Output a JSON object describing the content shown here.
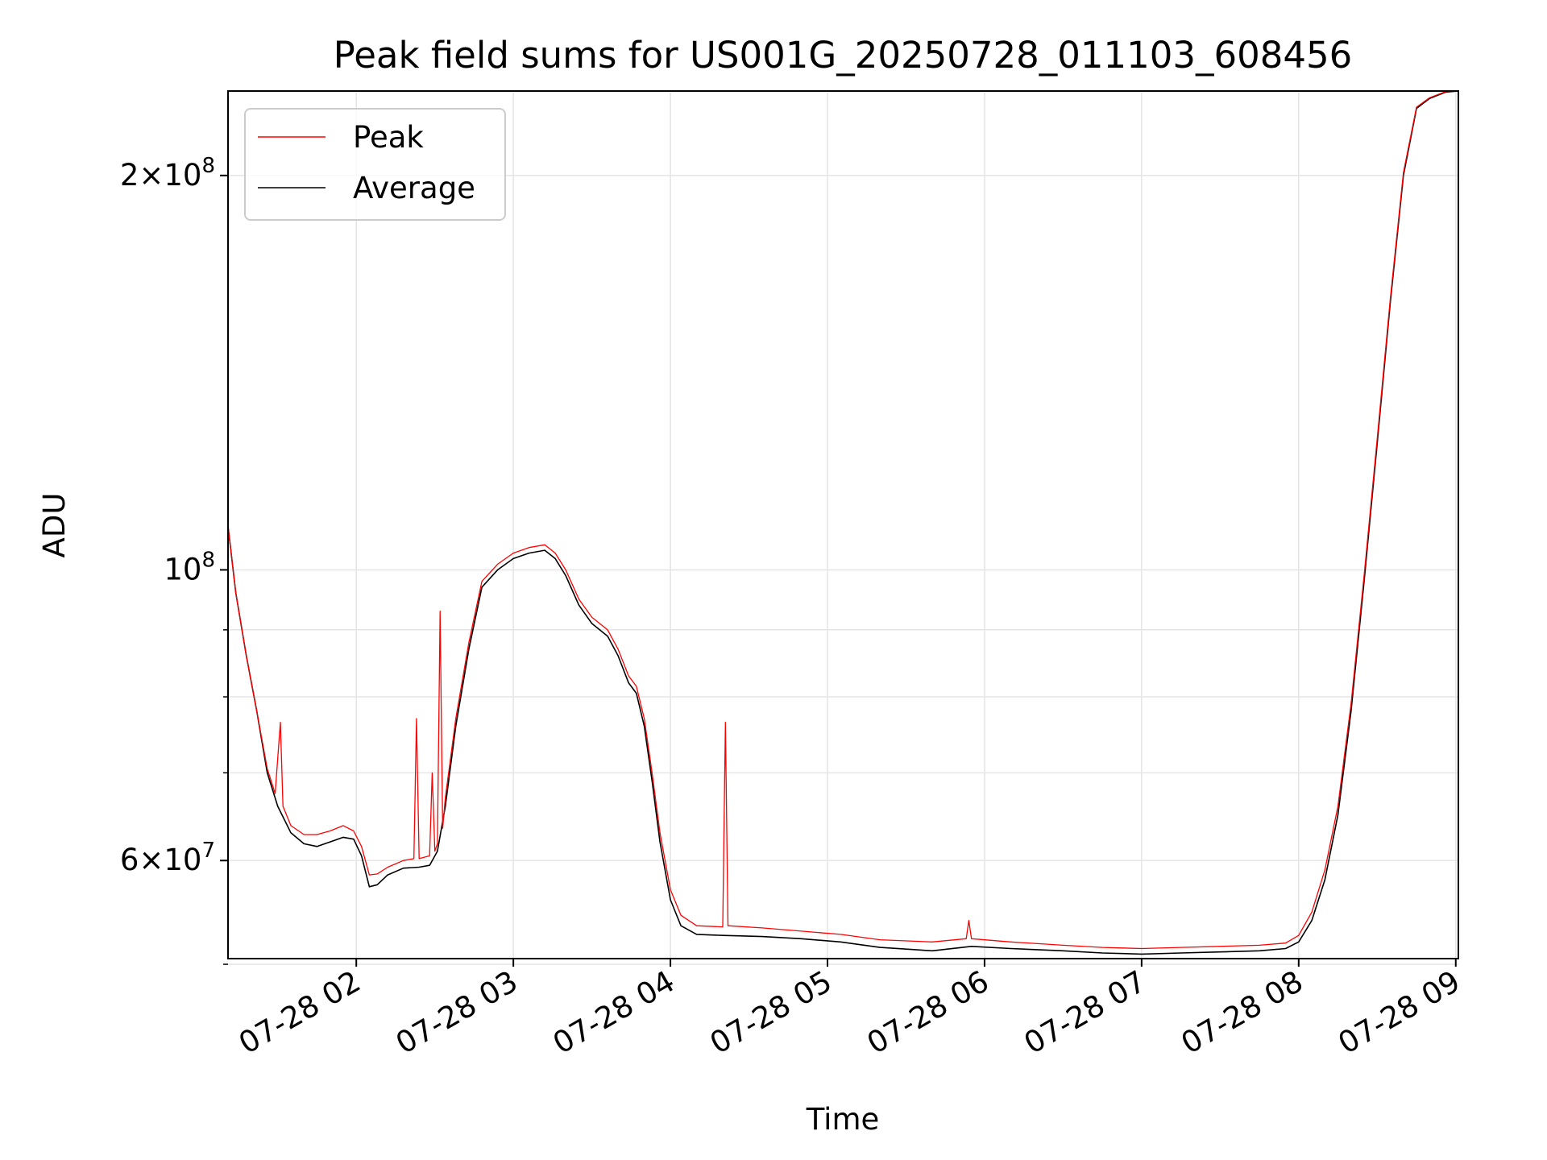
{
  "chart_data": {
    "type": "line",
    "title": "Peak field sums for US001G_20250728_011103_608456",
    "xlabel": "Time",
    "ylabel": "ADU",
    "x_axis": "time",
    "y_scale": "log",
    "grid": true,
    "legend_position": "top-left",
    "xlim": [
      "2025-07-28 01:11",
      "2025-07-28 09:01"
    ],
    "ylim": [
      50500000,
      232000000
    ],
    "x_ticks": [
      {
        "time": "2025-07-28 02:00",
        "label": "07-28 02"
      },
      {
        "time": "2025-07-28 03:00",
        "label": "07-28 03"
      },
      {
        "time": "2025-07-28 04:00",
        "label": "07-28 04"
      },
      {
        "time": "2025-07-28 05:00",
        "label": "07-28 05"
      },
      {
        "time": "2025-07-28 06:00",
        "label": "07-28 06"
      },
      {
        "time": "2025-07-28 07:00",
        "label": "07-28 07"
      },
      {
        "time": "2025-07-28 08:00",
        "label": "07-28 08"
      },
      {
        "time": "2025-07-28 09:00",
        "label": "07-28 09"
      }
    ],
    "y_ticks": [
      {
        "value": 60000000,
        "mantissa": "6",
        "exponent": "7"
      },
      {
        "value": 100000000,
        "mantissa": "",
        "exponent": "8"
      },
      {
        "value": 200000000,
        "mantissa": "2",
        "exponent": "8"
      }
    ],
    "y_minor_ticks": [
      50000000,
      70000000,
      80000000,
      90000000
    ],
    "series": [
      {
        "name": "Average",
        "color": "#000000",
        "points": [
          [
            "01:11",
            108000000
          ],
          [
            "01:14",
            96000000
          ],
          [
            "01:18",
            86000000
          ],
          [
            "01:22",
            78000000
          ],
          [
            "01:26",
            70000000
          ],
          [
            "01:30",
            66000000
          ],
          [
            "01:35",
            63000000
          ],
          [
            "01:40",
            61800000
          ],
          [
            "01:45",
            61500000
          ],
          [
            "01:50",
            62000000
          ],
          [
            "01:55",
            62500000
          ],
          [
            "01:59",
            62300000
          ],
          [
            "02:02",
            60500000
          ],
          [
            "02:05",
            57300000
          ],
          [
            "02:08",
            57500000
          ],
          [
            "02:12",
            58500000
          ],
          [
            "02:18",
            59200000
          ],
          [
            "02:24",
            59300000
          ],
          [
            "02:28",
            59500000
          ],
          [
            "02:31",
            61000000
          ],
          [
            "02:34",
            66000000
          ],
          [
            "02:38",
            76000000
          ],
          [
            "02:43",
            87000000
          ],
          [
            "02:48",
            97000000
          ],
          [
            "02:54",
            100000000
          ],
          [
            "03:00",
            102000000
          ],
          [
            "03:06",
            103000000
          ],
          [
            "03:12",
            103500000
          ],
          [
            "03:16",
            102000000
          ],
          [
            "03:20",
            99000000
          ],
          [
            "03:25",
            94000000
          ],
          [
            "03:30",
            91000000
          ],
          [
            "03:36",
            89000000
          ],
          [
            "03:40",
            86000000
          ],
          [
            "03:44",
            82000000
          ],
          [
            "03:47",
            80500000
          ],
          [
            "03:50",
            76000000
          ],
          [
            "03:53",
            69000000
          ],
          [
            "03:56",
            62000000
          ],
          [
            "04:00",
            56000000
          ],
          [
            "04:04",
            53500000
          ],
          [
            "04:10",
            52700000
          ],
          [
            "04:20",
            52600000
          ],
          [
            "04:35",
            52500000
          ],
          [
            "04:50",
            52300000
          ],
          [
            "05:05",
            52000000
          ],
          [
            "05:20",
            51500000
          ],
          [
            "05:40",
            51200000
          ],
          [
            "05:55",
            51600000
          ],
          [
            "06:10",
            51400000
          ],
          [
            "06:30",
            51200000
          ],
          [
            "06:45",
            51000000
          ],
          [
            "07:00",
            50900000
          ],
          [
            "07:15",
            51000000
          ],
          [
            "07:30",
            51100000
          ],
          [
            "07:45",
            51200000
          ],
          [
            "07:55",
            51400000
          ],
          [
            "08:00",
            52000000
          ],
          [
            "08:05",
            54000000
          ],
          [
            "08:10",
            58000000
          ],
          [
            "08:15",
            65000000
          ],
          [
            "08:20",
            78000000
          ],
          [
            "08:25",
            98000000
          ],
          [
            "08:30",
            125000000
          ],
          [
            "08:35",
            160000000
          ],
          [
            "08:40",
            200000000
          ],
          [
            "08:45",
            225000000
          ],
          [
            "08:50",
            229000000
          ],
          [
            "08:56",
            231500000
          ],
          [
            "09:01",
            232000000
          ]
        ]
      },
      {
        "name": "Peak",
        "color": "#ff0000",
        "points": [
          [
            "01:11",
            108000000
          ],
          [
            "01:14",
            96000000
          ],
          [
            "01:18",
            86000000
          ],
          [
            "01:22",
            78000000
          ],
          [
            "01:26",
            70500000
          ],
          [
            "01:29",
            67500000
          ],
          [
            "01:31",
            76500000
          ],
          [
            "01:32",
            66000000
          ],
          [
            "01:35",
            63800000
          ],
          [
            "01:40",
            62800000
          ],
          [
            "01:45",
            62800000
          ],
          [
            "01:50",
            63200000
          ],
          [
            "01:55",
            63800000
          ],
          [
            "01:59",
            63200000
          ],
          [
            "02:02",
            61500000
          ],
          [
            "02:05",
            58500000
          ],
          [
            "02:08",
            58600000
          ],
          [
            "02:12",
            59300000
          ],
          [
            "02:18",
            60000000
          ],
          [
            "02:22",
            60200000
          ],
          [
            "02:23",
            77000000
          ],
          [
            "02:24",
            60200000
          ],
          [
            "02:28",
            60500000
          ],
          [
            "02:29",
            70000000
          ],
          [
            "02:30",
            61000000
          ],
          [
            "02:31",
            61800000
          ],
          [
            "02:32",
            93000000
          ],
          [
            "02:33",
            63500000
          ],
          [
            "02:34",
            67000000
          ],
          [
            "02:38",
            77000000
          ],
          [
            "02:43",
            88000000
          ],
          [
            "02:48",
            98000000
          ],
          [
            "02:54",
            101000000
          ],
          [
            "03:00",
            103000000
          ],
          [
            "03:06",
            104000000
          ],
          [
            "03:12",
            104500000
          ],
          [
            "03:16",
            103000000
          ],
          [
            "03:20",
            100000000
          ],
          [
            "03:25",
            95000000
          ],
          [
            "03:30",
            92000000
          ],
          [
            "03:36",
            90000000
          ],
          [
            "03:40",
            87000000
          ],
          [
            "03:44",
            83000000
          ],
          [
            "03:47",
            81500000
          ],
          [
            "03:50",
            77000000
          ],
          [
            "03:53",
            70000000
          ],
          [
            "03:56",
            63000000
          ],
          [
            "04:00",
            57000000
          ],
          [
            "04:04",
            54500000
          ],
          [
            "04:10",
            53500000
          ],
          [
            "04:20",
            53400000
          ],
          [
            "04:21",
            76500000
          ],
          [
            "04:22",
            53500000
          ],
          [
            "04:35",
            53300000
          ],
          [
            "04:50",
            53000000
          ],
          [
            "05:05",
            52700000
          ],
          [
            "05:20",
            52200000
          ],
          [
            "05:40",
            52000000
          ],
          [
            "05:53",
            52300000
          ],
          [
            "05:54",
            54000000
          ],
          [
            "05:55",
            52300000
          ],
          [
            "06:10",
            52000000
          ],
          [
            "06:30",
            51700000
          ],
          [
            "06:45",
            51500000
          ],
          [
            "07:00",
            51400000
          ],
          [
            "07:15",
            51500000
          ],
          [
            "07:30",
            51600000
          ],
          [
            "07:45",
            51700000
          ],
          [
            "07:55",
            51900000
          ],
          [
            "08:00",
            52600000
          ],
          [
            "08:05",
            54800000
          ],
          [
            "08:10",
            59000000
          ],
          [
            "08:15",
            66000000
          ],
          [
            "08:20",
            79000000
          ],
          [
            "08:25",
            99000000
          ],
          [
            "08:30",
            126000000
          ],
          [
            "08:35",
            161000000
          ],
          [
            "08:40",
            201000000
          ],
          [
            "08:45",
            225500000
          ],
          [
            "08:50",
            229300000
          ],
          [
            "08:56",
            231700000
          ],
          [
            "09:01",
            232000000
          ]
        ]
      }
    ],
    "legend": [
      {
        "label": "Peak",
        "color": "#ff0000"
      },
      {
        "label": "Average",
        "color": "#000000"
      }
    ]
  }
}
